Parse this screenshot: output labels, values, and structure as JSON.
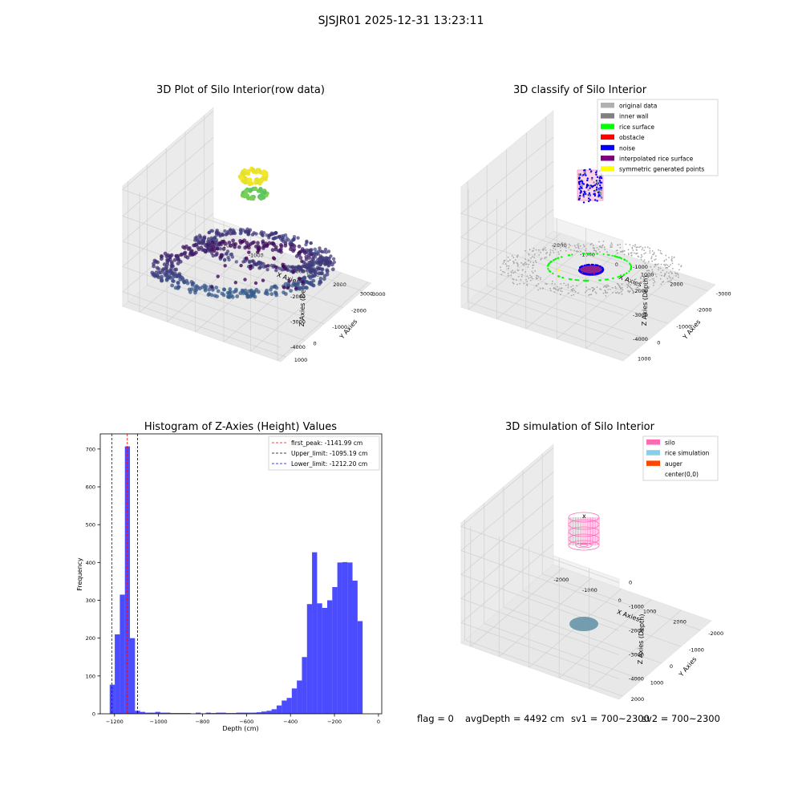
{
  "suptitle": "SJSJR01 2025-12-31 13:23:11",
  "status": {
    "flag": "flag = 0",
    "avg_depth": "avgDepth = 4492 cm",
    "sv1": "sv1 = 700~2300",
    "sv2": "sv2 = 700~2300"
  },
  "chart_data": [
    {
      "type": "scatter",
      "projection": "3d",
      "title": "3D Plot of Silo Interior(row data)",
      "xlabel": "X Axies",
      "ylabel": "Y Axies",
      "zlabel": "Z Axies (Depth)",
      "x_ticks": [
        "-2000",
        "-1000",
        "0",
        "1000",
        "2000",
        "3000"
      ],
      "y_ticks": [
        "-3000",
        "-2000",
        "-1000",
        "0",
        "1000"
      ],
      "z_ticks": [
        "0",
        "-1000",
        "-2000",
        "-3000",
        "-4000"
      ],
      "colormap": "viridis"
    },
    {
      "type": "scatter",
      "projection": "3d",
      "title": "3D classify of Silo Interior",
      "xlabel": "X Axies",
      "ylabel": "Y Axies",
      "zlabel": "Z Axies (Depth)",
      "x_ticks": [
        "-2000",
        "-1000",
        "0",
        "1000",
        "2000"
      ],
      "y_ticks": [
        "-3000",
        "-2000",
        "-1000",
        "0",
        "1000"
      ],
      "z_ticks": [
        "-1000",
        "-2000",
        "-3000",
        "-4000"
      ],
      "legend_position": "top-right",
      "legend": [
        {
          "name": "original data",
          "color": "#b0b0b0"
        },
        {
          "name": "inner wall",
          "color": "#808080"
        },
        {
          "name": "rice surface",
          "color": "#00ff00"
        },
        {
          "name": "obstacle",
          "color": "#ff0000"
        },
        {
          "name": "noise",
          "color": "#0000ff"
        },
        {
          "name": "interpolated rice surface",
          "color": "#800080"
        },
        {
          "name": "symmetric generated points",
          "color": "#ffff00"
        }
      ]
    },
    {
      "type": "bar",
      "title": "Histogram of Z-Axies (Height) Values",
      "xlabel": "Depth (cm)",
      "ylabel": "Frequency",
      "xlim": [
        -1265,
        15
      ],
      "ylim": [
        0,
        740
      ],
      "x_ticks": [
        -1200,
        -1000,
        -800,
        -600,
        -400,
        -200,
        0
      ],
      "y_ticks": [
        0,
        100,
        200,
        300,
        400,
        500,
        600,
        700
      ],
      "bar_color": "#0000ff",
      "bin_width": 23,
      "bins_left": [
        -1222,
        -1199,
        -1176,
        -1153,
        -1130,
        -1107,
        -1084,
        -1061,
        -1038,
        -1015,
        -992,
        -969,
        -946,
        -923,
        -900,
        -877,
        -854,
        -831,
        -808,
        -785,
        -762,
        -739,
        -716,
        -693,
        -670,
        -647,
        -624,
        -601,
        -578,
        -555,
        -532,
        -509,
        -486,
        -463,
        -440,
        -417,
        -394,
        -371,
        -348,
        -325,
        -302,
        -279,
        -256,
        -233,
        -210,
        -187,
        -164,
        -141,
        -118,
        -95,
        -72
      ],
      "values": [
        77,
        210,
        315,
        707,
        200,
        8,
        5,
        3,
        3,
        5,
        3,
        3,
        2,
        2,
        2,
        2,
        1,
        3,
        1,
        3,
        2,
        3,
        3,
        2,
        2,
        3,
        3,
        3,
        3,
        4,
        6,
        8,
        12,
        22,
        35,
        42,
        67,
        88,
        150,
        290,
        427,
        292,
        280,
        300,
        335,
        400,
        401,
        400,
        352,
        245,
        0
      ],
      "vlines": [
        {
          "label": "first_peak: -1141.99 cm",
          "x": -1141.99,
          "color": "#ff0000"
        },
        {
          "label": "Upper_limit: -1095.19 cm",
          "x": -1095.19,
          "color": "#000000"
        },
        {
          "label": "Lower_limit: -1212.20 cm",
          "x": -1212.2,
          "color": "#0000ff"
        }
      ],
      "legend_position": "top-right"
    },
    {
      "type": "scatter",
      "projection": "3d",
      "title": "3D simulation of Silo Interior",
      "xlabel": "X Axies",
      "ylabel": "Y Axies",
      "zlabel": "Z Axies (Depth)",
      "x_ticks": [
        "-2000",
        "-1000",
        "0",
        "1000",
        "2000"
      ],
      "y_ticks": [
        "-2000",
        "-1000",
        "0",
        "1000",
        "2000"
      ],
      "z_ticks": [
        "0",
        "-1000",
        "-2000",
        "-3000",
        "-4000"
      ],
      "legend_position": "top-right",
      "legend": [
        {
          "name": "silo",
          "color": "#ff69b4"
        },
        {
          "name": "rice simulation",
          "color": "#87ceeb"
        },
        {
          "name": "auger",
          "color": "#ff4500"
        },
        {
          "name": "center(0,0)",
          "color": "#000000"
        }
      ]
    }
  ]
}
